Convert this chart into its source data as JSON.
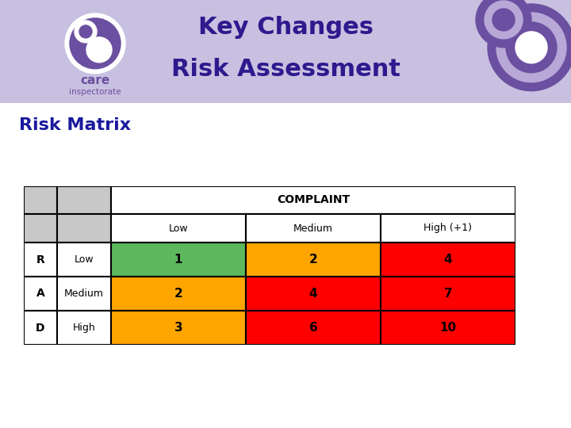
{
  "title_line1": "Key Changes",
  "title_line2": "Risk Assessment",
  "subtitle": "Risk Matrix",
  "header_bg": "#c8c0e0",
  "title_color": "#2e1a8e",
  "subtitle_color": "#1a1a9e",
  "complaint_header": "COMPLAINT",
  "col_headers": [
    "Low",
    "Medium",
    "High (+1)"
  ],
  "row_labels": [
    "R",
    "A",
    "D"
  ],
  "row_sublabels": [
    "Low",
    "Medium",
    "High"
  ],
  "cell_values": [
    [
      "1",
      "2",
      "4"
    ],
    [
      "2",
      "4",
      "7"
    ],
    [
      "3",
      "6",
      "10"
    ]
  ],
  "cell_colors": [
    [
      "#5cb85c",
      "#ffa500",
      "#ff0000"
    ],
    [
      "#ffa500",
      "#ff0000",
      "#ff0000"
    ],
    [
      "#ffa500",
      "#ff0000",
      "#ff0000"
    ]
  ],
  "header_cell_bg": "#c8c8c8",
  "white_cell_bg": "#ffffff",
  "fig_bg": "#ffffff",
  "logo_color": "#6b4fa0",
  "logo_light": "#b8a8d8"
}
